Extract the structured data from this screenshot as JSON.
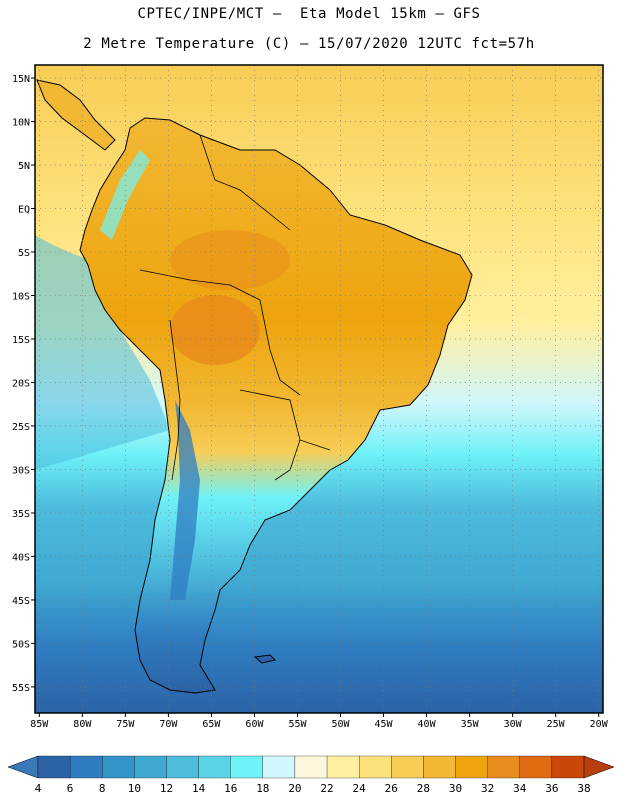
{
  "title": {
    "line1": "CPTEC/INPE/MCT –  Eta Model 15km – GFS",
    "line2": "2 Metre Temperature (C) – 15/07/2020 12UTC fct=57h"
  },
  "map": {
    "lat_labels": [
      "15N",
      "10N",
      "5N",
      "EQ",
      "5S",
      "10S",
      "15S",
      "20S",
      "25S",
      "30S",
      "35S",
      "40S",
      "45S",
      "50S",
      "55S"
    ],
    "lon_labels": [
      "85W",
      "80W",
      "75W",
      "70W",
      "65W",
      "60W",
      "55W",
      "50W",
      "45W",
      "40W",
      "35W",
      "30W",
      "25W",
      "20W"
    ],
    "lat_values": [
      15,
      10,
      5,
      0,
      -5,
      -10,
      -15,
      -20,
      -25,
      -30,
      -35,
      -40,
      -45,
      -50,
      -55
    ],
    "lon_values": [
      -85,
      -80,
      -75,
      -70,
      -65,
      -60,
      -55,
      -50,
      -45,
      -40,
      -35,
      -30,
      -25,
      -20
    ],
    "extent": {
      "lon_min": -85.5,
      "lon_max": -19.5,
      "lat_min": -58,
      "lat_max": 16.5
    }
  },
  "legend": {
    "labels": [
      "4",
      "6",
      "8",
      "10",
      "12",
      "14",
      "16",
      "18",
      "20",
      "22",
      "24",
      "26",
      "28",
      "30",
      "32",
      "34",
      "36",
      "38"
    ],
    "colors": [
      "#2b63a6",
      "#2f7cc0",
      "#3496c8",
      "#3fa9d2",
      "#4dbcdd",
      "#5bd3e6",
      "#6ff2f8",
      "#d2f6fb",
      "#fff6de",
      "#fff0a0",
      "#fde17a",
      "#f7cd55",
      "#f2b834",
      "#eda40d",
      "#e98c1b",
      "#de6a12",
      "#c84709"
    ],
    "low_color": "#3a78b8",
    "high_color": "#b83e0e"
  },
  "colors": {
    "land_warm": "#eda40d",
    "land_hot": "#e98c1b",
    "ocean_north": "#fde17a",
    "ocean_cold": "#2b63a6",
    "border": "#000000"
  }
}
